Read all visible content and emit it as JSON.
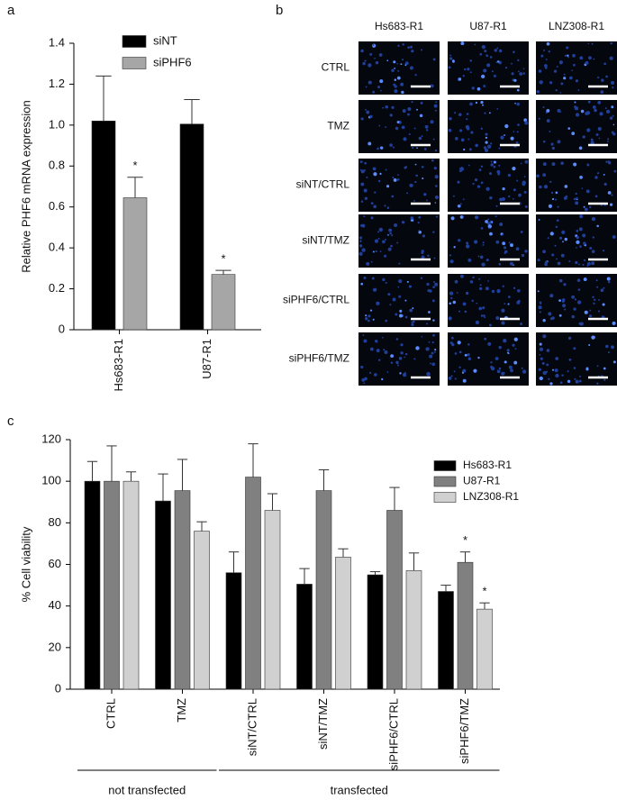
{
  "chart_data": [
    {
      "type": "bar",
      "panel_label": "a",
      "ylabel": "Relative PHF6 mRNA expression",
      "categories": [
        "Hs683-R1",
        "U87-R1"
      ],
      "series": [
        {
          "name": "siNT",
          "color": "#000000",
          "values": [
            1.02,
            1.005
          ],
          "errors": [
            0.22,
            0.12
          ]
        },
        {
          "name": "siPHF6",
          "color": "#a6a6a6",
          "values": [
            0.645,
            0.27
          ],
          "errors": [
            0.1,
            0.02
          ],
          "annotations": [
            "*",
            "*"
          ]
        }
      ],
      "ylim": [
        0,
        1.4
      ],
      "yticks": [
        0,
        0.2,
        0.4,
        0.6,
        0.8,
        {
          "value": 1,
          "label": "1.0"
        },
        1.2,
        1.4
      ],
      "legend": "top"
    },
    {
      "type": "bar",
      "panel_label": "c",
      "ylabel": "% Cell viability",
      "categories": [
        "CTRL",
        "TMZ",
        "siNT/CTRL",
        "siNT/TMZ",
        "siPHF6/CTRL",
        "siPHF6/TMZ"
      ],
      "series": [
        {
          "name": "Hs683-R1",
          "color": "#000000",
          "values": [
            100,
            90.5,
            56,
            50.5,
            55,
            47
          ],
          "errors": [
            9.5,
            13,
            10,
            7.5,
            1.5,
            3
          ]
        },
        {
          "name": "U87-R1",
          "color": "#808080",
          "values": [
            100,
            95.5,
            102,
            95.5,
            86,
            61
          ],
          "errors": [
            17,
            15,
            16,
            10,
            11,
            5
          ],
          "annotations": [
            null,
            null,
            null,
            null,
            null,
            "*"
          ]
        },
        {
          "name": "LNZ308-R1",
          "color": "#d0d0d0",
          "values": [
            100,
            76,
            86,
            63.5,
            57,
            38.5
          ],
          "errors": [
            4.5,
            4.5,
            8,
            4,
            8.5,
            3
          ],
          "annotations": [
            null,
            null,
            null,
            null,
            null,
            "*"
          ]
        }
      ],
      "ylim": [
        0,
        120
      ],
      "yticks": [
        0,
        20,
        40,
        60,
        80,
        100,
        120
      ],
      "groups": [
        {
          "label": "not transfected",
          "size": 2
        },
        {
          "label": "transfected",
          "size": 4
        }
      ],
      "legend": "right"
    }
  ],
  "image_panel": {
    "panel_label": "b",
    "columns": [
      "Hs683-R1",
      "U87-R1",
      "LNZ308-R1"
    ],
    "rows": [
      "CTRL",
      "TMZ",
      "siNT/CTRL",
      "siNT/TMZ",
      "siPHF6/CTRL",
      "siPHF6/TMZ"
    ]
  }
}
